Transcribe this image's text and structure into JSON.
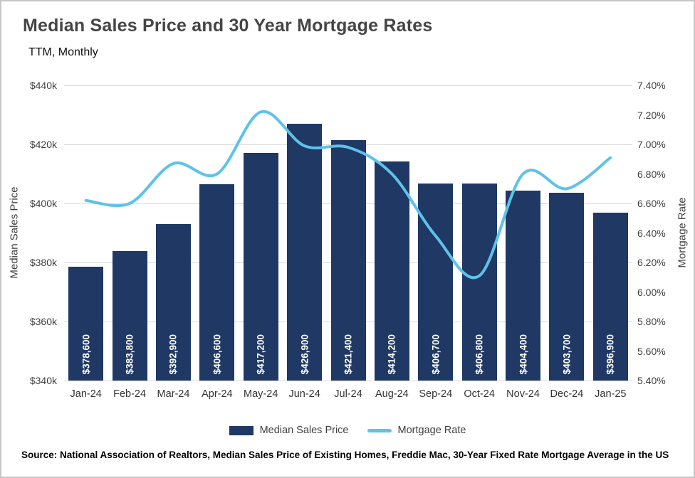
{
  "chart_data": {
    "type": "bar",
    "title": "Median Sales Price and 30 Year Mortgage Rates",
    "subtitle": "TTM, Monthly",
    "ylabel_left": "Median Sales Price",
    "ylabel_right": "Mortgage Rate",
    "categories": [
      "Jan-24",
      "Feb-24",
      "Mar-24",
      "Apr-24",
      "May-24",
      "Jun-24",
      "Jul-24",
      "Aug-24",
      "Sep-24",
      "Oct-24",
      "Nov-24",
      "Dec-24",
      "Jan-25"
    ],
    "series": [
      {
        "name": "Median Sales Price",
        "type": "bar",
        "axis": "left",
        "values": [
          378600,
          383800,
          392900,
          406600,
          417200,
          426900,
          421400,
          414200,
          406700,
          406800,
          404400,
          403700,
          396900
        ],
        "labels": [
          "$378,600",
          "$383,800",
          "$392,900",
          "$406,600",
          "$417,200",
          "$426,900",
          "$421,400",
          "$414,200",
          "$406,700",
          "$406,800",
          "$404,400",
          "$403,700",
          "$396,900"
        ]
      },
      {
        "name": "Mortgage Rate",
        "type": "line",
        "axis": "right",
        "values": [
          6.62,
          6.6,
          6.87,
          6.8,
          7.22,
          6.99,
          6.98,
          6.8,
          6.38,
          6.11,
          6.8,
          6.7,
          6.91
        ]
      }
    ],
    "left_axis": {
      "min": 340000,
      "max": 440000,
      "ticks": [
        "$440k",
        "$420k",
        "$400k",
        "$380k",
        "$360k",
        "$340k"
      ]
    },
    "right_axis": {
      "min": 5.4,
      "max": 7.4,
      "ticks": [
        "7.40%",
        "7.20%",
        "7.00%",
        "6.80%",
        "6.60%",
        "6.40%",
        "6.20%",
        "6.00%",
        "5.80%",
        "5.60%",
        "5.40%"
      ]
    },
    "legend": [
      "Median Sales Price",
      "Mortgage Rate"
    ],
    "grid": true,
    "legend_position": "bottom"
  },
  "colors": {
    "bar": "#1F3864",
    "line": "#5EC2E9",
    "grid": "#D9D9D9"
  },
  "source": "Source: National Association of Realtors, Median Sales Price of Existing Homes, Freddie Mac, 30-Year Fixed Rate Mortgage Average in the US"
}
